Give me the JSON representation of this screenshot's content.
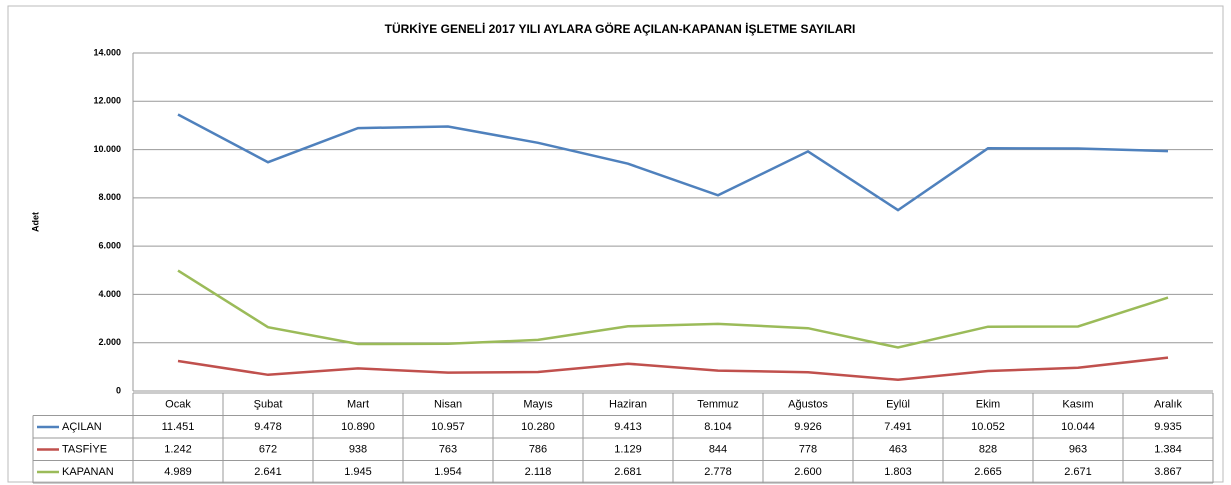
{
  "chart_data": {
    "type": "line",
    "title": "TÜRKİYE GENELİ 2017 YILI AYLARA GÖRE AÇILAN-KAPANAN İŞLETME SAYILARI",
    "y_label": "Adet",
    "categories": [
      "Ocak",
      "Şubat",
      "Mart",
      "Nisan",
      "Mayıs",
      "Haziran",
      "Temmuz",
      "Ağustos",
      "Eylül",
      "Ekim",
      "Kasım",
      "Aralık"
    ],
    "series": [
      {
        "name": "AÇILAN",
        "color": "#4f81bd",
        "values": [
          11451,
          9478,
          10890,
          10957,
          10280,
          9413,
          8104,
          9926,
          7491,
          10052,
          10044,
          9935
        ],
        "value_labels": [
          "11.451",
          "9.478",
          "10.890",
          "10.957",
          "10.280",
          "9.413",
          "8.104",
          "9.926",
          "7.491",
          "10.052",
          "10.044",
          "9.935"
        ]
      },
      {
        "name": "TASFİYE",
        "color": "#c0504d",
        "values": [
          1242,
          672,
          938,
          763,
          786,
          1129,
          844,
          778,
          463,
          828,
          963,
          1384
        ],
        "value_labels": [
          "1.242",
          "672",
          "938",
          "763",
          "786",
          "1.129",
          "844",
          "778",
          "463",
          "828",
          "963",
          "1.384"
        ]
      },
      {
        "name": "KAPANAN",
        "color": "#9bbb59",
        "values": [
          4989,
          2641,
          1945,
          1954,
          2118,
          2681,
          2778,
          2600,
          1803,
          2665,
          2671,
          3867
        ],
        "value_labels": [
          "4.989",
          "2.641",
          "1.945",
          "1.954",
          "2.118",
          "2.681",
          "2.778",
          "2.600",
          "1.803",
          "2.665",
          "2.671",
          "3.867"
        ]
      }
    ],
    "ylim": [
      0,
      14000
    ],
    "yticks": [
      0,
      {
        "value": 2000,
        "label": "2.000"
      },
      {
        "value": 4000,
        "label": "4.000"
      },
      {
        "value": 6000,
        "label": "6.000"
      },
      {
        "value": 8000,
        "label": "8.000"
      },
      {
        "value": 10000,
        "label": "10.000"
      },
      {
        "value": 12000,
        "label": "12.000"
      },
      {
        "value": 14000,
        "label": "14.000"
      }
    ],
    "grid": true
  }
}
